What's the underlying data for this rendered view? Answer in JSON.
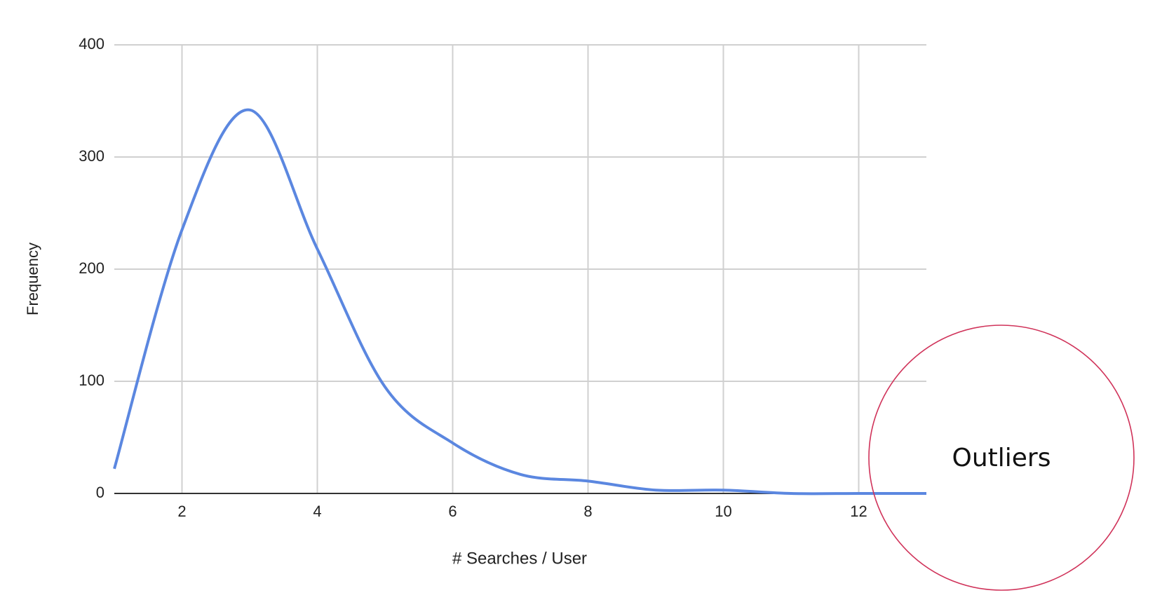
{
  "chart_data": {
    "type": "line",
    "x_label": "# Searches / User",
    "y_label": "Frequency",
    "x": [
      1,
      2,
      3,
      4,
      5,
      6,
      7,
      8,
      9,
      10,
      11,
      12,
      13
    ],
    "series": [
      {
        "name": "Frequency",
        "color": "#5b87e0",
        "values": [
          22,
          235,
          342,
          218,
          95,
          45,
          17,
          11,
          3,
          3,
          0,
          0,
          0
        ]
      }
    ],
    "xlim": [
      1,
      13
    ],
    "xticks": [
      2,
      4,
      6,
      8,
      10,
      12
    ],
    "ylim": [
      0,
      400
    ],
    "yticks": [
      0,
      100,
      200,
      300,
      400
    ],
    "grid": true,
    "smooth": true,
    "annotations": [
      "Outliers"
    ]
  }
}
